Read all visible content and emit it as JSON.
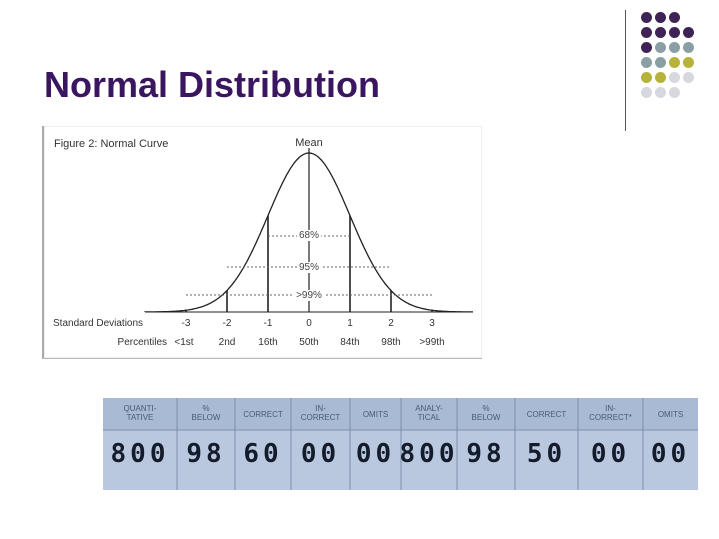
{
  "slide": {
    "title": "Normal Distribution"
  },
  "decor": {
    "dot_colors": {
      "purple": "#3f2356",
      "teal": "#8a9fa4",
      "olive": "#b7b23a",
      "light": "#d7d7df"
    },
    "dot_grid": [
      [
        "purple",
        "purple",
        "purple",
        null
      ],
      [
        "purple",
        "purple",
        "purple",
        "purple"
      ],
      [
        "purple",
        "teal",
        "teal",
        "teal"
      ],
      [
        "teal",
        "teal",
        "olive",
        "olive"
      ],
      [
        "olive",
        "olive",
        "light",
        "light"
      ],
      [
        "light",
        "light",
        "light",
        null
      ]
    ]
  },
  "figure": {
    "caption": "Figure 2: Normal Curve",
    "mean_label": "Mean",
    "bands": [
      "68%",
      "95%",
      ">99%"
    ],
    "row_labels": {
      "std": "Standard Deviations",
      "pct": "Percentiles"
    },
    "std_ticks": [
      "-3",
      "-2",
      "-1",
      "0",
      "1",
      "2",
      "3"
    ],
    "percentiles": [
      "<1st",
      "2nd",
      "16th",
      "50th",
      "84th",
      "98th",
      ">99th"
    ]
  },
  "score_report": {
    "headers": [
      "QUANTI-\nTATIVE",
      "%\nBELOW",
      "CORRECT",
      "IN-\nCORRECT",
      "OMITS",
      "ANALY-\nTICAL",
      "%\nBELOW",
      "CORRECT",
      "IN-\nCORRECT*",
      "OMITS"
    ],
    "values": [
      "800",
      "98",
      "60",
      "00",
      "00",
      "800",
      "98",
      "50",
      "00",
      "00"
    ]
  }
}
